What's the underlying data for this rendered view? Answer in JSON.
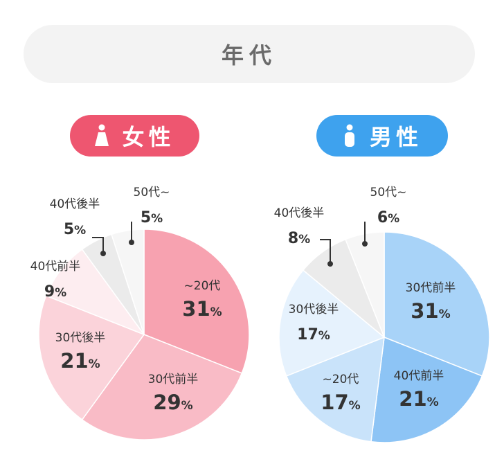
{
  "header": {
    "title": "年代"
  },
  "female": {
    "label": "女性"
  },
  "male": {
    "label": "男性"
  },
  "colors": {
    "female_accent": "#ee5670",
    "male_accent": "#3ea2ee",
    "title_bg": "#f3f3f3"
  },
  "chart_data": [
    {
      "type": "pie",
      "title": "女性",
      "categories": [
        "~20代",
        "30代前半",
        "30代後半",
        "40代前半",
        "40代後半",
        "50代~"
      ],
      "values": [
        31,
        29,
        21,
        9,
        5,
        5
      ],
      "value_suffix": "%",
      "colors": [
        "#f7a2b0",
        "#f9bbc6",
        "#fbd3da",
        "#fdedf0",
        "#ebebeb",
        "#f6f6f6"
      ]
    },
    {
      "type": "pie",
      "title": "男性",
      "categories": [
        "30代前半",
        "40代前半",
        "~20代",
        "30代後半",
        "40代後半",
        "50代~"
      ],
      "values": [
        31,
        21,
        17,
        17,
        8,
        6
      ],
      "value_suffix": "%",
      "colors": [
        "#a8d3f8",
        "#8dc4f5",
        "#c9e3fa",
        "#e6f2fd",
        "#ebebeb",
        "#f6f6f6"
      ]
    }
  ]
}
